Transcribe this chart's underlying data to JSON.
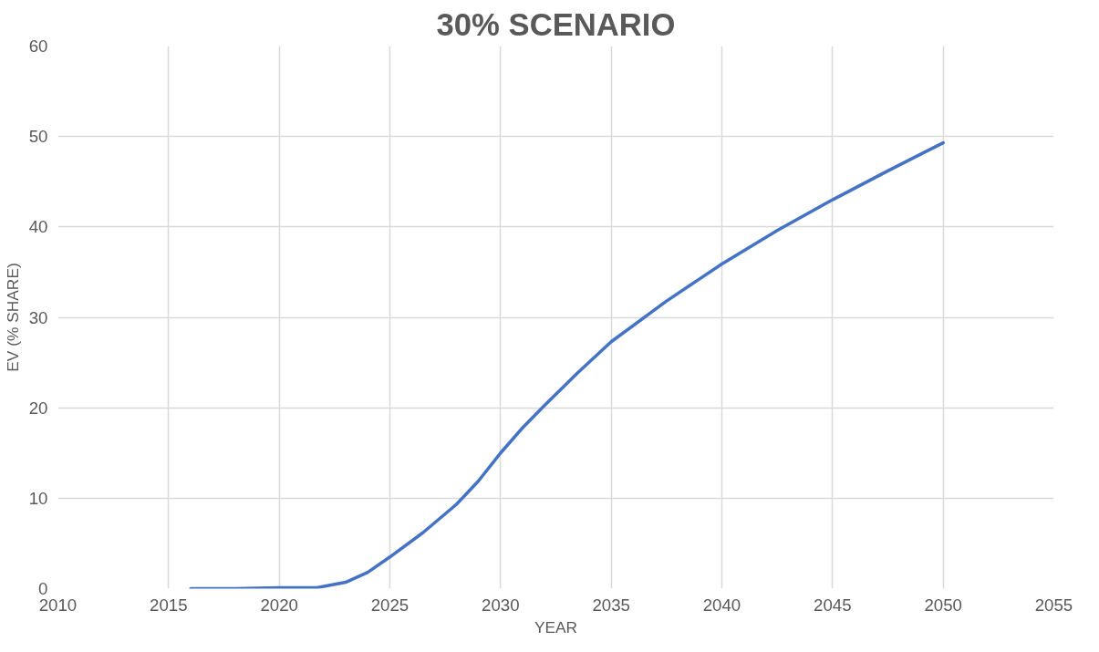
{
  "chart_data": {
    "type": "line",
    "title": "30% SCENARIO",
    "xlabel": "YEAR",
    "ylabel": "EV (% SHARE)",
    "x": [
      2016,
      2018,
      2020,
      2021.7,
      2023,
      2024,
      2025,
      2026.5,
      2028,
      2029,
      2030,
      2031,
      2032,
      2033.5,
      2035,
      2037.5,
      2040,
      2042.5,
      2045,
      2047.5,
      2050
    ],
    "series": [
      {
        "color": "#4472c4",
        "values": [
          0,
          0,
          0.1,
          0.1,
          0.7,
          1.8,
          3.5,
          6.2,
          9.3,
          11.9,
          15.0,
          17.8,
          20.3,
          23.9,
          27.3,
          31.8,
          35.9,
          39.6,
          43.0,
          46.2,
          49.3
        ]
      }
    ],
    "xlim": [
      2010,
      2055
    ],
    "xticks": [
      2010,
      2015,
      2020,
      2025,
      2030,
      2035,
      2040,
      2045,
      2050,
      2055
    ],
    "ylim": [
      0,
      60
    ],
    "yticks": [
      0,
      10,
      20,
      30,
      40,
      50,
      60
    ],
    "grid": true,
    "marker": "none",
    "line_style": "solid"
  }
}
